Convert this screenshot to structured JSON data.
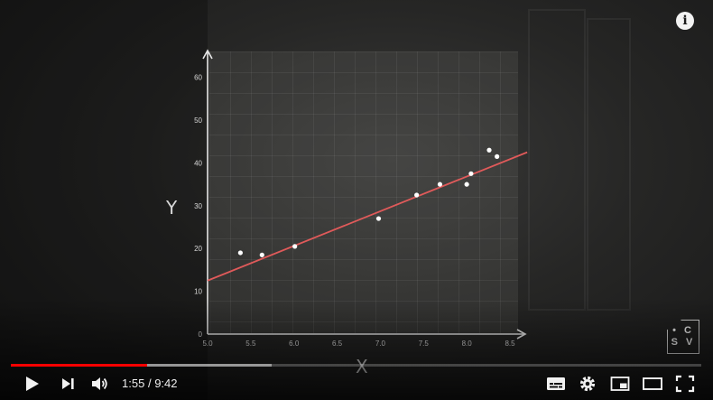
{
  "player": {
    "time_current": "1:55",
    "time_separator": "/",
    "time_total": "9:42",
    "progress_played": 0.198,
    "progress_buffered": 0.378,
    "accent_color": "#ff0000",
    "watermark_line1": "• C",
    "watermark_line2": "S V",
    "info_glyph": "i"
  },
  "chart_data": {
    "type": "scatter",
    "title": "",
    "xlabel": "X",
    "ylabel": "Y",
    "xlim": [
      5.0,
      8.5
    ],
    "ylim": [
      0,
      65
    ],
    "x_ticks": [
      "5.0",
      "5.5",
      "6.0",
      "6.5",
      "7.0",
      "7.5",
      "8.0",
      "8.5"
    ],
    "y_ticks": [
      "0",
      "10",
      "20",
      "30",
      "40",
      "50",
      "60"
    ],
    "points": [
      {
        "x": 5.38,
        "y": 19
      },
      {
        "x": 5.63,
        "y": 18.5
      },
      {
        "x": 6.01,
        "y": 20.5
      },
      {
        "x": 6.98,
        "y": 27
      },
      {
        "x": 7.42,
        "y": 32.5
      },
      {
        "x": 7.69,
        "y": 35
      },
      {
        "x": 8.0,
        "y": 35
      },
      {
        "x": 8.05,
        "y": 37.5
      },
      {
        "x": 8.26,
        "y": 43
      },
      {
        "x": 8.35,
        "y": 41.5
      }
    ],
    "regression": {
      "x0": 5.0,
      "y0": 12.5,
      "x1": 8.7,
      "y1": 42.5
    },
    "regression_color": "#e05a5a",
    "point_color": "#ffffff"
  }
}
